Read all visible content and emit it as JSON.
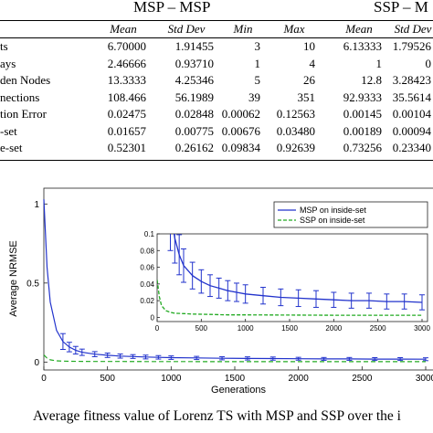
{
  "table": {
    "groups": [
      "MSP – MSP",
      "SSP – M"
    ],
    "headers": [
      "Mean",
      "Std Dev",
      "Min",
      "Max",
      "Mean",
      "Std Dev"
    ],
    "rows": [
      {
        "label": "ts",
        "cells": [
          "6.70000",
          "1.91455",
          "3",
          "10",
          "6.13333",
          "1.79526"
        ]
      },
      {
        "label": "ays",
        "cells": [
          "2.46666",
          "0.93710",
          "1",
          "4",
          "1",
          "0"
        ]
      },
      {
        "label": "den Nodes",
        "cells": [
          "13.3333",
          "4.25346",
          "5",
          "26",
          "12.8",
          "3.28423"
        ]
      },
      {
        "label": "nections",
        "cells": [
          "108.466",
          "56.1989",
          "39",
          "351",
          "92.9333",
          "35.5614"
        ]
      },
      {
        "label": "tion Error",
        "cells": [
          "0.02475",
          "0.02848",
          "0.00062",
          "0.12563",
          "0.00145",
          "0.00104"
        ]
      },
      {
        "label": "-set",
        "cells": [
          "0.01657",
          "0.00775",
          "0.00676",
          "0.03480",
          "0.00189",
          "0.00094"
        ]
      },
      {
        "label": "e-set",
        "cells": [
          "0.52301",
          "0.26162",
          "0.09834",
          "0.92639",
          "0.73256",
          "0.23340"
        ]
      }
    ]
  },
  "chart_data": [
    {
      "type": "line",
      "xlabel": "Generations",
      "ylabel": "Average NRMSE",
      "xlim": [
        0,
        3000
      ],
      "ylim": [
        -0.05,
        1.1
      ],
      "x_ticks": [
        0,
        500,
        1000,
        1500,
        2000,
        2500,
        3000
      ],
      "x_tick_labels": [
        "0",
        "500",
        "1000",
        "1500",
        "2000",
        "2500",
        "3000"
      ],
      "y_ticks": [
        0,
        0.5,
        1
      ],
      "y_tick_labels": [
        "0",
        "0.5",
        "1"
      ],
      "legend": "top-right",
      "series": [
        {
          "name": "MSP on inside-set",
          "color": "#2233cc",
          "style": "solid",
          "x": [
            0,
            25,
            50,
            100,
            150,
            200,
            250,
            300,
            400,
            500,
            600,
            700,
            800,
            900,
            1000,
            1200,
            1400,
            1600,
            1800,
            2000,
            2200,
            2400,
            2600,
            2800,
            3000
          ],
          "y": [
            1.03,
            0.6,
            0.38,
            0.2,
            0.13,
            0.095,
            0.075,
            0.062,
            0.05,
            0.043,
            0.038,
            0.035,
            0.032,
            0.03,
            0.028,
            0.026,
            0.024,
            0.023,
            0.022,
            0.021,
            0.02,
            0.02,
            0.019,
            0.019,
            0.018
          ],
          "error_x": [
            150,
            200,
            250,
            300,
            400,
            500,
            600,
            700,
            800,
            900,
            1000,
            1200,
            1400,
            1600,
            1800,
            2000,
            2200,
            2400,
            2600,
            2800,
            3000
          ],
          "error_y": [
            0.13,
            0.095,
            0.075,
            0.062,
            0.05,
            0.043,
            0.038,
            0.035,
            0.032,
            0.03,
            0.028,
            0.026,
            0.024,
            0.023,
            0.022,
            0.021,
            0.02,
            0.02,
            0.019,
            0.019,
            0.018
          ],
          "error_dy": [
            0.05,
            0.03,
            0.024,
            0.02,
            0.016,
            0.014,
            0.013,
            0.012,
            0.012,
            0.011,
            0.011,
            0.01,
            0.01,
            0.01,
            0.01,
            0.009,
            0.009,
            0.009,
            0.009,
            0.009,
            0.009
          ]
        },
        {
          "name": "SSP on inside-set",
          "color": "#22aa22",
          "style": "dashed",
          "x": [
            0,
            25,
            50,
            100,
            150,
            200,
            300,
            400,
            600,
            800,
            1000,
            1500,
            2000,
            2500,
            3000
          ],
          "y": [
            0.045,
            0.025,
            0.014,
            0.008,
            0.006,
            0.005,
            0.0045,
            0.004,
            0.0035,
            0.003,
            0.003,
            0.0028,
            0.0026,
            0.0025,
            0.0025
          ]
        }
      ]
    },
    {
      "type": "line",
      "xlim": [
        0,
        3000
      ],
      "ylim": [
        -0.005,
        0.1
      ],
      "x_ticks": [
        0,
        500,
        1000,
        1500,
        2000,
        2500,
        3000
      ],
      "x_tick_labels": [
        "0",
        "500",
        "1000",
        "1500",
        "2000",
        "2500",
        "3000"
      ],
      "y_ticks": [
        0,
        0.02,
        0.04,
        0.06,
        0.08,
        0.1
      ],
      "y_tick_labels": [
        "0",
        "0.02",
        "0.04",
        "0.06",
        "0.08",
        "0.1"
      ]
    }
  ],
  "caption": "Average fitness value of Lorenz TS with MSP and SSP over the i"
}
